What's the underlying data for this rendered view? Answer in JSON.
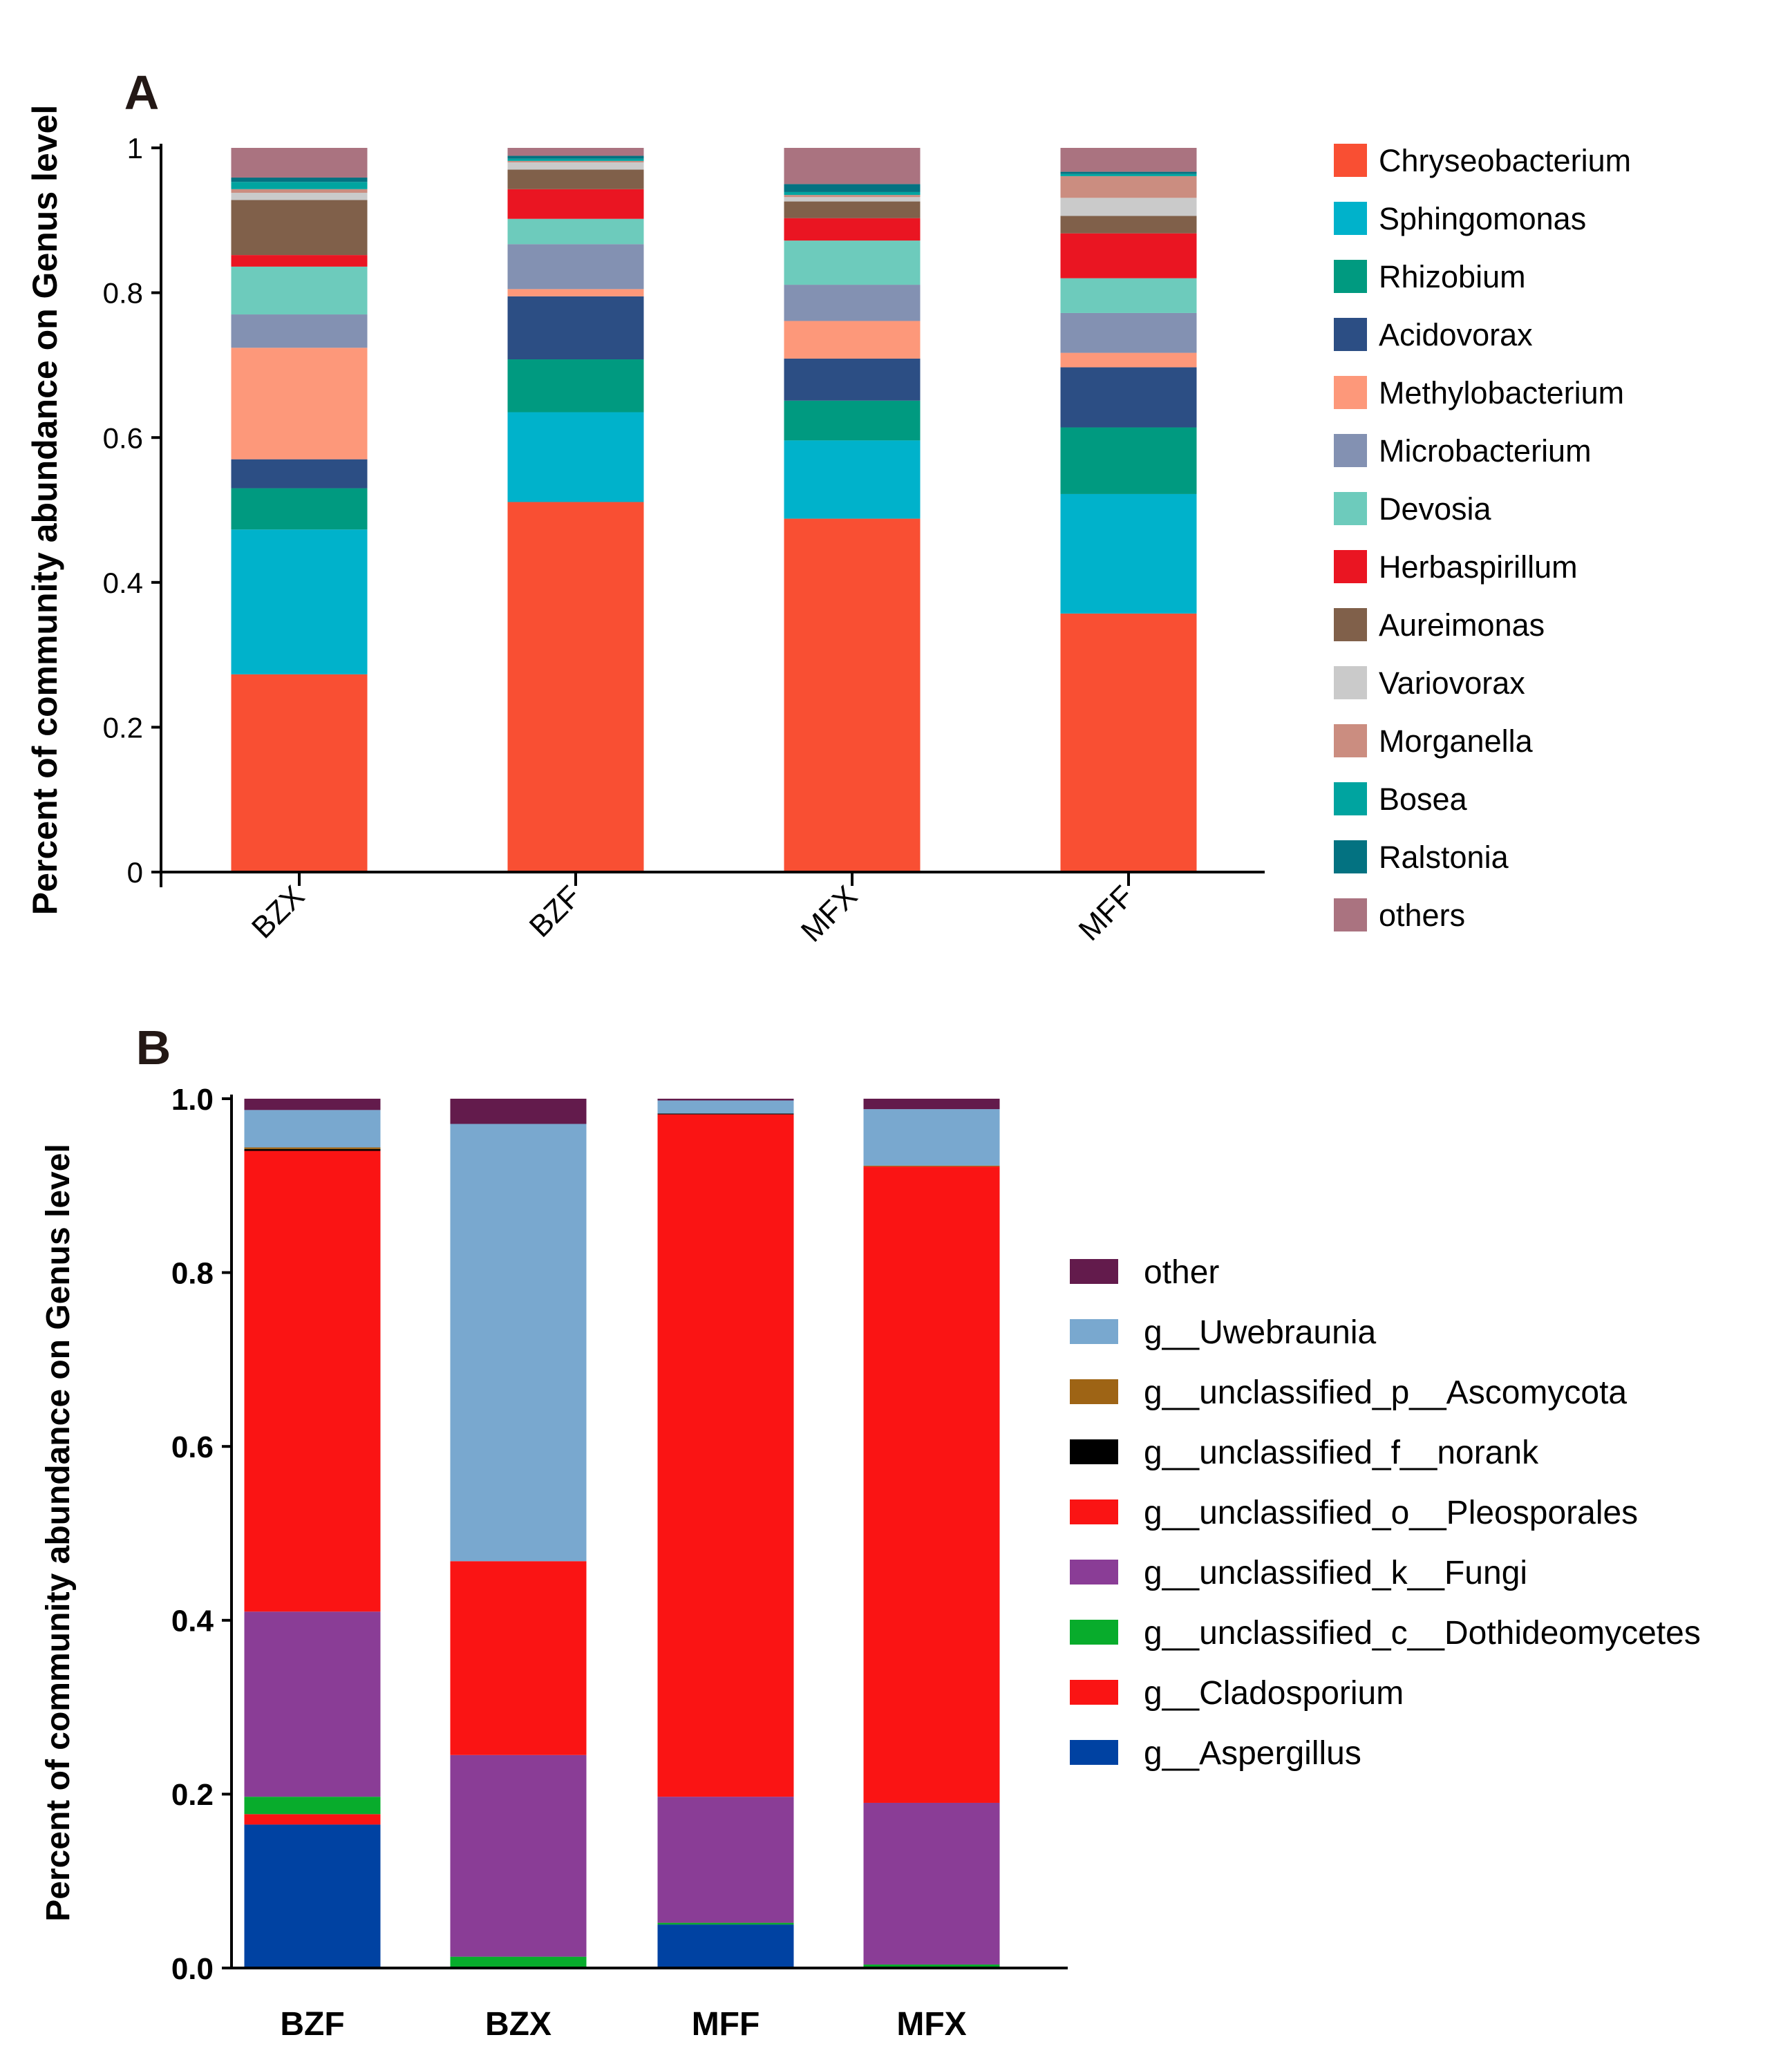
{
  "chart_data": [
    {
      "panel": "A",
      "type": "bar",
      "stacked": true,
      "ylabel": "Percent of community abundance on Genus level",
      "ylim": [
        0,
        1
      ],
      "yticks": [
        "0",
        "0.2",
        "0.4",
        "0.6",
        "0.8",
        "1"
      ],
      "categories": [
        "BZX",
        "BZF",
        "MFX",
        "MFF"
      ],
      "legend_position": "right",
      "series": [
        {
          "name": "Chryseobacterium",
          "color": "#F94F33",
          "values": [
            0.273,
            0.511,
            0.488,
            0.357
          ]
        },
        {
          "name": "Sphingomonas",
          "color": "#00B2CB",
          "values": [
            0.2,
            0.124,
            0.108,
            0.165
          ]
        },
        {
          "name": "Rhizobium",
          "color": "#009A80",
          "values": [
            0.057,
            0.073,
            0.055,
            0.092
          ]
        },
        {
          "name": "Acidovorax",
          "color": "#2C4E84",
          "values": [
            0.04,
            0.087,
            0.058,
            0.083
          ]
        },
        {
          "name": "Methylobacterium",
          "color": "#FD987A",
          "values": [
            0.154,
            0.01,
            0.052,
            0.02
          ]
        },
        {
          "name": "Microbacterium",
          "color": "#8391B2",
          "values": [
            0.046,
            0.062,
            0.05,
            0.055
          ]
        },
        {
          "name": "Devosia",
          "color": "#6DCBBC",
          "values": [
            0.066,
            0.035,
            0.061,
            0.048
          ]
        },
        {
          "name": "Herbaspirillum",
          "color": "#EA1522",
          "values": [
            0.016,
            0.041,
            0.031,
            0.062
          ]
        },
        {
          "name": "Aureimonas",
          "color": "#80604A",
          "values": [
            0.076,
            0.027,
            0.023,
            0.024
          ]
        },
        {
          "name": "Variovorax",
          "color": "#CACACA",
          "values": [
            0.01,
            0.01,
            0.006,
            0.025
          ]
        },
        {
          "name": "Morganella",
          "color": "#CB8D80",
          "values": [
            0.005,
            0.002,
            0.003,
            0.03
          ]
        },
        {
          "name": "Bosea",
          "color": "#00A4A0",
          "values": [
            0.01,
            0.003,
            0.004,
            0.003
          ]
        },
        {
          "name": "Ralstonia",
          "color": "#037281",
          "values": [
            0.006,
            0.004,
            0.011,
            0.003
          ]
        },
        {
          "name": "others",
          "color": "#AA7380",
          "values": [
            0.041,
            0.011,
            0.05,
            0.033
          ]
        }
      ]
    },
    {
      "panel": "B",
      "type": "bar",
      "stacked": true,
      "ylabel": "Percent of community abundance on Genus level",
      "ylim": [
        0,
        1
      ],
      "yticks": [
        "0.0",
        "0.2",
        "0.4",
        "0.6",
        "0.8",
        "1.0"
      ],
      "categories": [
        "BZF",
        "BZX",
        "MFF",
        "MFX"
      ],
      "legend_position": "right",
      "series": [
        {
          "name": "g__Aspergillus",
          "color": "#0042A2",
          "values": [
            0.165,
            0.0,
            0.05,
            0.0
          ]
        },
        {
          "name": "g__Cladosporium",
          "color": "#FA1414",
          "values": [
            0.012,
            0.0,
            0.0,
            0.0
          ]
        },
        {
          "name": "g__unclassified_c__Dothideomycetes",
          "color": "#08AC2C",
          "values": [
            0.02,
            0.013,
            0.002,
            0.004
          ]
        },
        {
          "name": "g__unclassified_k__Fungi",
          "color": "#8A3D96",
          "values": [
            0.213,
            0.232,
            0.145,
            0.186
          ]
        },
        {
          "name": "g__unclassified_o__Pleosporales",
          "color": "#FA1414",
          "values": [
            0.53,
            0.223,
            0.785,
            0.732
          ]
        },
        {
          "name": "g__unclassified_f__norank",
          "color": "#000000",
          "values": [
            0.002,
            0.0,
            0.001,
            0.0
          ]
        },
        {
          "name": "g__unclassified_p__Ascomycota",
          "color": "#9E6415",
          "values": [
            0.002,
            0.0,
            0.0,
            0.001
          ]
        },
        {
          "name": "g__Uwebraunia",
          "color": "#79A8CF",
          "values": [
            0.043,
            0.503,
            0.015,
            0.065
          ]
        },
        {
          "name": "other",
          "color": "#631B4C",
          "values": [
            0.013,
            0.029,
            0.002,
            0.012
          ]
        }
      ],
      "legend_order": [
        "other",
        "g__Uwebraunia",
        "g__unclassified_p__Ascomycota",
        "g__unclassified_f__norank",
        "g__unclassified_o__Pleosporales",
        "g__unclassified_k__Fungi",
        "g__unclassified_c__Dothideomycetes",
        "g__Cladosporium",
        "g__Aspergillus"
      ]
    }
  ]
}
